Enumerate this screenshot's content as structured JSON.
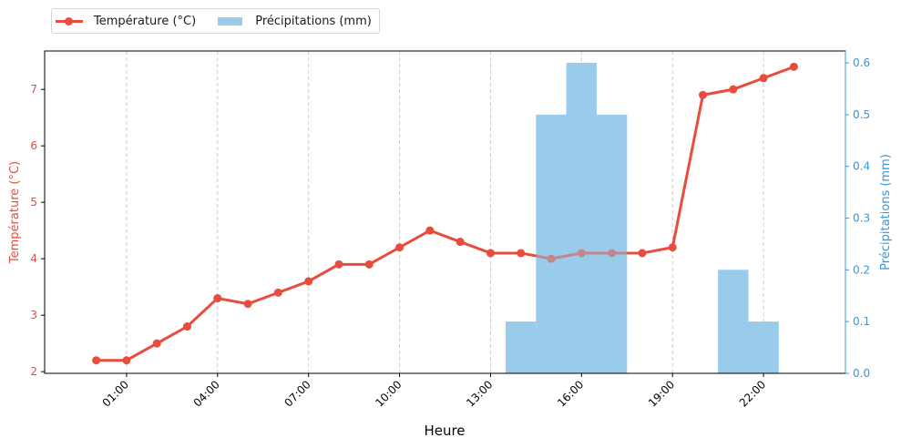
{
  "chart_data": {
    "type": "bar+line",
    "title": "",
    "xlabel": "Heure",
    "x": [
      "00:00",
      "01:00",
      "02:00",
      "03:00",
      "04:00",
      "05:00",
      "06:00",
      "07:00",
      "08:00",
      "09:00",
      "10:00",
      "11:00",
      "12:00",
      "13:00",
      "14:00",
      "15:00",
      "16:00",
      "17:00",
      "18:00",
      "19:00",
      "20:00",
      "21:00",
      "22:00",
      "23:00"
    ],
    "x_tick_labels": [
      "01:00",
      "04:00",
      "07:00",
      "10:00",
      "13:00",
      "16:00",
      "19:00",
      "22:00"
    ],
    "x_tick_hours": [
      1,
      4,
      7,
      10,
      13,
      16,
      19,
      22
    ],
    "xlim": [
      -1.7,
      24.7
    ],
    "grid": {
      "x": true,
      "y": false,
      "style": "dashed",
      "color": "#cccccc"
    },
    "legend_position": "top-left outside",
    "series": [
      {
        "name": "Température (°C)",
        "type": "line",
        "axis": "left",
        "color": "#e74c3c",
        "marker": "circle",
        "values": [
          2.2,
          2.2,
          2.5,
          2.8,
          3.3,
          3.2,
          3.4,
          3.6,
          3.9,
          3.9,
          4.2,
          4.5,
          4.3,
          4.1,
          4.1,
          4.0,
          4.1,
          4.1,
          4.1,
          4.2,
          6.9,
          7.0,
          7.2,
          7.4
        ]
      },
      {
        "name": "Précipitations (mm)",
        "type": "bar",
        "axis": "right",
        "color": "#9acbeb",
        "values": [
          0,
          0,
          0,
          0,
          0,
          0,
          0,
          0,
          0,
          0,
          0,
          0,
          0,
          0,
          0.1,
          0.5,
          0.6,
          0.5,
          0,
          0,
          0,
          0.2,
          0.1,
          0
        ]
      }
    ],
    "y_left": {
      "label": "Température (°C)",
      "color": "#e74c3c",
      "ticks": [
        2,
        3,
        4,
        5,
        6,
        7
      ],
      "ylim": [
        1.97,
        7.68
      ]
    },
    "y_right": {
      "label": "Précipitations (mm)",
      "color": "#3498db",
      "ticks": [
        0.0,
        0.1,
        0.2,
        0.3,
        0.4,
        0.5,
        0.6
      ],
      "tick_labels": [
        "0.0",
        "0.1",
        "0.2",
        "0.3",
        "0.4",
        "0.5",
        "0.6"
      ],
      "ylim": [
        0,
        0.623
      ]
    }
  },
  "legend": {
    "temperature_label": "Température (°C)",
    "precip_label": "Précipitations (mm)"
  }
}
